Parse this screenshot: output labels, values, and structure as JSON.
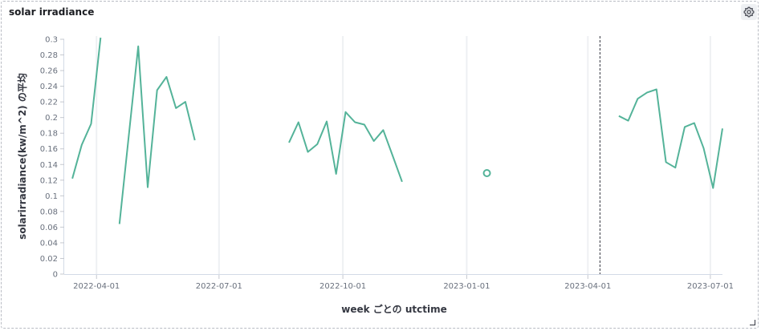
{
  "panel": {
    "title": "solar irradiance",
    "settings_icon": "gear-icon"
  },
  "chart_data": {
    "type": "line",
    "xlabel": "week ごとの utctime",
    "ylabel": "solarirradiance(kw/m^2) の平均",
    "ylim": [
      0,
      0.3
    ],
    "xlim": [
      "2022-03-08",
      "2023-07-10"
    ],
    "grid": "vertical lines at x ticks, y gridlines none",
    "series_color": "#54b399",
    "y_ticks": [
      0,
      0.02,
      0.04,
      0.06,
      0.08,
      0.1,
      0.12,
      0.14,
      0.16,
      0.18,
      0.2,
      0.22,
      0.24,
      0.26,
      0.28,
      0.3
    ],
    "y_tick_labels": [
      "0",
      "0.02",
      "0.04",
      "0.06",
      "0.08",
      "0.1",
      "0.12",
      "0.14",
      "0.16",
      "0.18",
      "0.2",
      "0.22",
      "0.24",
      "0.26",
      "0.28",
      "0.3"
    ],
    "x_ticks": [
      "2022-04-01",
      "2022-07-01",
      "2022-10-01",
      "2023-01-01",
      "2023-04-01",
      "2023-07-01"
    ],
    "x_tick_labels": [
      "2022-04-01",
      "2022-07-01",
      "2022-10-01",
      "2023-01-01",
      "2023-04-01",
      "2023-07-01"
    ],
    "marker_line": "2023-04-10",
    "segments": [
      {
        "points": [
          [
            "2022-03-14",
            0.122
          ],
          [
            "2022-03-21",
            0.165
          ],
          [
            "2022-03-28",
            0.192
          ],
          [
            "2022-04-04",
            0.302
          ]
        ]
      },
      {
        "points": [
          [
            "2022-04-18",
            0.064
          ],
          [
            "2022-05-02",
            0.291
          ],
          [
            "2022-05-09",
            0.111
          ],
          [
            "2022-05-16",
            0.235
          ],
          [
            "2022-05-23",
            0.252
          ],
          [
            "2022-05-30",
            0.212
          ],
          [
            "2022-06-06",
            0.22
          ],
          [
            "2022-06-13",
            0.171
          ]
        ]
      },
      {
        "points": [
          [
            "2022-08-22",
            0.168
          ],
          [
            "2022-08-29",
            0.194
          ],
          [
            "2022-09-05",
            0.156
          ],
          [
            "2022-09-12",
            0.166
          ],
          [
            "2022-09-19",
            0.195
          ],
          [
            "2022-09-26",
            0.128
          ],
          [
            "2022-10-03",
            0.207
          ],
          [
            "2022-10-10",
            0.194
          ],
          [
            "2022-10-17",
            0.191
          ],
          [
            "2022-10-24",
            0.17
          ],
          [
            "2022-10-31",
            0.184
          ],
          [
            "2022-11-07",
            0.151
          ],
          [
            "2022-11-14",
            0.118
          ]
        ]
      },
      {
        "points": [
          [
            "2023-01-16",
            0.129
          ]
        ]
      },
      {
        "points": [
          [
            "2023-04-24",
            0.202
          ],
          [
            "2023-05-01",
            0.196
          ],
          [
            "2023-05-08",
            0.224
          ],
          [
            "2023-05-15",
            0.232
          ],
          [
            "2023-05-22",
            0.236
          ],
          [
            "2023-05-29",
            0.143
          ],
          [
            "2023-06-05",
            0.136
          ],
          [
            "2023-06-12",
            0.188
          ],
          [
            "2023-06-19",
            0.193
          ],
          [
            "2023-06-26",
            0.161
          ],
          [
            "2023-07-03",
            0.11
          ],
          [
            "2023-07-10",
            0.186
          ]
        ]
      }
    ]
  }
}
